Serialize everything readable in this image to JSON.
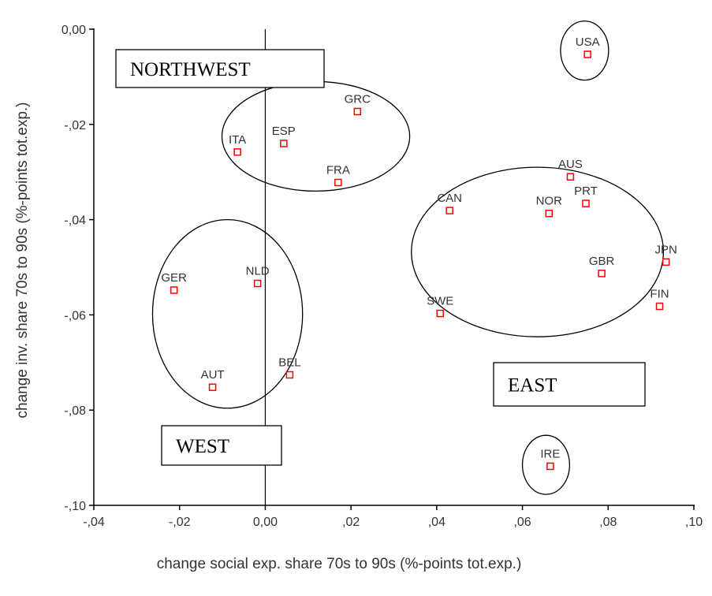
{
  "chart_data": {
    "type": "scatter",
    "title": "",
    "xlabel": "change social exp. share 70s to 90s (%-points tot.exp.)",
    "ylabel": "change inv. share 70s to 90s (%-points tot.exp.)",
    "xlim": [
      -0.04,
      0.1
    ],
    "ylim": [
      -0.1,
      0.0
    ],
    "x_ticks": [
      -0.04,
      -0.02,
      0.0,
      0.02,
      0.04,
      0.06,
      0.08,
      0.1
    ],
    "x_tick_labels": [
      "-,04",
      "-,02",
      "0,00",
      ",02",
      ",04",
      ",06",
      ",08",
      ",10"
    ],
    "y_ticks": [
      0.0,
      -0.02,
      -0.04,
      -0.06,
      -0.08,
      -0.1
    ],
    "y_tick_labels": [
      "0,00",
      "-,02",
      "-,04",
      "-,06",
      "-,08",
      "-,10"
    ],
    "reference_line_x": 0.0,
    "grid": false,
    "marker_color": "#ff0000",
    "points": [
      {
        "label": "USA",
        "x": 0.0752,
        "y": -0.0053
      },
      {
        "label": "GRC",
        "x": 0.0215,
        "y": -0.0173
      },
      {
        "label": "ESP",
        "x": 0.0043,
        "y": -0.024
      },
      {
        "label": "ITA",
        "x": -0.0065,
        "y": -0.0258
      },
      {
        "label": "FRA",
        "x": 0.017,
        "y": -0.0322
      },
      {
        "label": "AUS",
        "x": 0.0712,
        "y": -0.031
      },
      {
        "label": "PRT",
        "x": 0.0748,
        "y": -0.0366
      },
      {
        "label": "CAN",
        "x": 0.043,
        "y": -0.0381
      },
      {
        "label": "NOR",
        "x": 0.0662,
        "y": -0.0387
      },
      {
        "label": "JPN",
        "x": 0.0935,
        "y": -0.0489
      },
      {
        "label": "GBR",
        "x": 0.0785,
        "y": -0.0513
      },
      {
        "label": "GER",
        "x": -0.0213,
        "y": -0.0548
      },
      {
        "label": "NLD",
        "x": -0.0018,
        "y": -0.0534
      },
      {
        "label": "FIN",
        "x": 0.092,
        "y": -0.0582
      },
      {
        "label": "SWE",
        "x": 0.0408,
        "y": -0.0597
      },
      {
        "label": "BEL",
        "x": 0.0057,
        "y": -0.0726
      },
      {
        "label": "AUT",
        "x": -0.0123,
        "y": -0.0752
      },
      {
        "label": "IRE",
        "x": 0.0665,
        "y": -0.0918
      }
    ],
    "groups": [
      {
        "label": "NORTHWEST",
        "center": [
          0.0118,
          -0.0225
        ],
        "radius": [
          0.0219,
          0.0115
        ]
      },
      {
        "label": "WEST",
        "center": [
          -0.0088,
          -0.0598
        ],
        "radius": [
          0.0175,
          0.0198
        ]
      },
      {
        "label": "EAST",
        "center": [
          0.0635,
          -0.0468
        ],
        "radius": [
          0.0294,
          0.0178
        ]
      },
      {
        "label": "",
        "center": [
          0.0745,
          -0.0045
        ],
        "radius": [
          0.0056,
          0.0062
        ]
      },
      {
        "label": "",
        "center": [
          0.0655,
          -0.0915
        ],
        "radius": [
          0.0055,
          0.0062
        ]
      }
    ]
  }
}
